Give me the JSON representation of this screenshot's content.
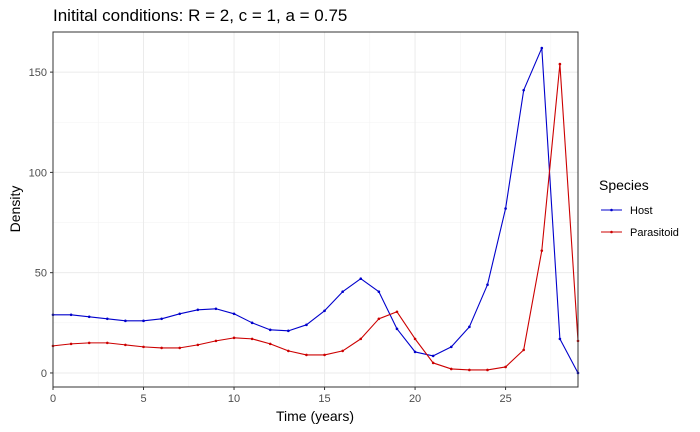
{
  "chart_data": {
    "type": "line",
    "title": "Initital conditions: R = 2, c = 1, a = 0.75",
    "xlabel": "Time (years)",
    "ylabel": "Density",
    "xlim": [
      0,
      29
    ],
    "ylim": [
      -7,
      170
    ],
    "x_ticks": [
      0,
      5,
      10,
      15,
      20,
      25
    ],
    "x_minor_ticks": [
      2.5,
      7.5,
      12.5,
      17.5,
      22.5,
      27.5
    ],
    "y_ticks": [
      0,
      50,
      100,
      150
    ],
    "y_minor_ticks": [
      25,
      75,
      125
    ],
    "grid": true,
    "legend": {
      "title": "Species",
      "position": "right"
    },
    "x": [
      0,
      1,
      2,
      3,
      4,
      5,
      6,
      7,
      8,
      9,
      10,
      11,
      12,
      13,
      14,
      15,
      16,
      17,
      18,
      19,
      20,
      21,
      22,
      23,
      24,
      25,
      26,
      27,
      28,
      29
    ],
    "series": [
      {
        "name": "Host",
        "color": "#0000cc",
        "values": [
          29,
          29,
          28,
          27,
          26,
          26,
          27,
          29.5,
          31.5,
          32,
          29.5,
          25,
          21.5,
          21,
          24,
          31,
          40.5,
          47,
          40.5,
          22,
          10.5,
          8.5,
          13,
          23,
          44,
          82,
          141,
          162,
          17,
          0
        ]
      },
      {
        "name": "Parasitoid",
        "color": "#cc0000",
        "values": [
          13.5,
          14.5,
          15,
          15,
          14,
          13,
          12.5,
          12.5,
          14,
          16,
          17.5,
          17,
          14.5,
          11,
          9,
          9,
          11,
          17,
          27,
          30.5,
          17,
          5,
          2,
          1.5,
          1.5,
          3,
          11.5,
          61,
          154,
          16
        ]
      }
    ]
  }
}
